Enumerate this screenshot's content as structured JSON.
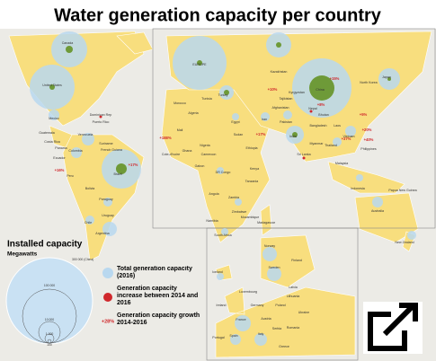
{
  "title": "Water generation capacity per country",
  "legend": {
    "heading": "Installed capacity",
    "unit": "Megawatts",
    "scale_labels": [
      "300 000 (China)",
      "100 000",
      "10 000",
      "1 000",
      "100"
    ],
    "items": [
      {
        "label": "Total generation capacity (2016)"
      },
      {
        "label": "Generation capacity increase between 2014 and 2016"
      },
      {
        "marker": "+28%",
        "label": "Generation capacity growth 2014-2016"
      }
    ]
  },
  "country_labels": [
    "Canada",
    "United States",
    "Mexico",
    "Dominican Rep",
    "Puerto Rico",
    "Guatemala",
    "Costa Rica",
    "Panama",
    "Venezuela",
    "Colombia",
    "Suriname",
    "French Guiana",
    "Ecuador",
    "Brazil",
    "Peru",
    "Bolivia",
    "Paraguay",
    "Uruguay",
    "Chile",
    "Argentina",
    "EUROPE",
    "Kazakhstan",
    "Kyrgyzstan",
    "Tajikistan",
    "Afghanistan",
    "Turkey",
    "Iran",
    "Pakistan",
    "Nepal",
    "Bhutan",
    "Bangladesh",
    "India",
    "China",
    "North Korea",
    "Japan",
    "Laos",
    "Vietnam",
    "Thailand",
    "Myanmar",
    "Sri Lanka",
    "Philippines",
    "Malaysia",
    "Indonesia",
    "Papua New Guinea",
    "Australia",
    "New Zealand",
    "Morocco",
    "Algeria",
    "Tunisia",
    "Egypt",
    "Mali",
    "Nigeria",
    "Ghana",
    "Cote-d'Ivoire",
    "Cameroon",
    "Sudan",
    "Ethiopia",
    "Kenya",
    "DR Congo",
    "Gabon",
    "Tanzania",
    "Angola",
    "Zambia",
    "Zimbabwe",
    "Mozambique",
    "Namibia",
    "South Africa",
    "Madagascar",
    "Iceland",
    "Norway",
    "Sweden",
    "Finland",
    "Latvia",
    "Lithuania",
    "Ireland",
    "Luxembourg",
    "Germany",
    "Poland",
    "Ukraine",
    "France",
    "Austria",
    "Romania",
    "Serbia",
    "Italy",
    "Spain",
    "Portugal",
    "Greece"
  ],
  "growth_labels": [
    "+15%",
    "+8%",
    "+17%",
    "+16%",
    "+188%",
    "+10%",
    "+5%",
    "+20%",
    "+37%",
    "+40%",
    "+17%"
  ]
}
